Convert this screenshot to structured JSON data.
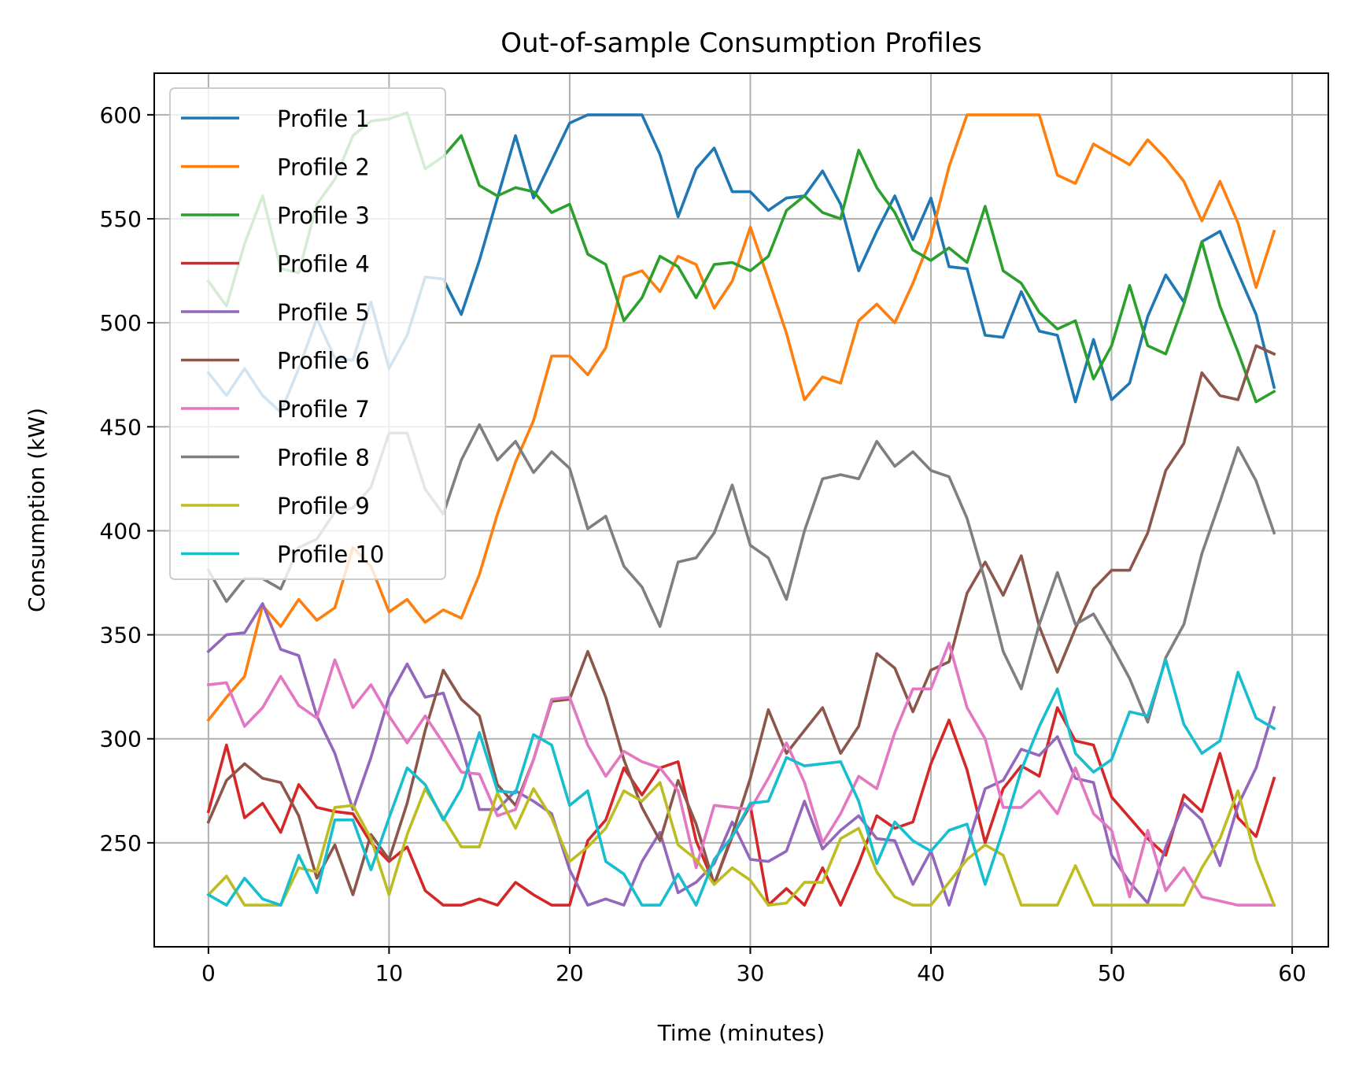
{
  "chart_data": {
    "type": "line",
    "title": "Out-of-sample Consumption Profiles",
    "xlabel": "Time (minutes)",
    "ylabel": "Consumption (kW)",
    "xlim": [
      -3,
      62
    ],
    "ylim": [
      200,
      620
    ],
    "xticks": [
      0,
      10,
      20,
      30,
      40,
      50,
      60
    ],
    "yticks": [
      250,
      300,
      350,
      400,
      450,
      500,
      550,
      600
    ],
    "grid": true,
    "legend_position": "upper-left",
    "x": [
      0,
      1,
      2,
      3,
      4,
      5,
      6,
      7,
      8,
      9,
      10,
      11,
      12,
      13,
      14,
      15,
      16,
      17,
      18,
      19,
      20,
      21,
      22,
      23,
      24,
      25,
      26,
      27,
      28,
      29,
      30,
      31,
      32,
      33,
      34,
      35,
      36,
      37,
      38,
      39,
      40,
      41,
      42,
      43,
      44,
      45,
      46,
      47,
      48,
      49,
      50,
      51,
      52,
      53,
      54,
      55,
      56,
      57,
      58,
      59
    ],
    "series": [
      {
        "name": "Profile 1",
        "color": "#1f77b4",
        "values": [
          476,
          465,
          478,
          465,
          457,
          478,
          502,
          483,
          482,
          510,
          478,
          494,
          522,
          521,
          504,
          530,
          560,
          590,
          560,
          578,
          596,
          600,
          600,
          600,
          600,
          581,
          551,
          574,
          584,
          563,
          563,
          554,
          560,
          561,
          573,
          557,
          525,
          544,
          561,
          540,
          560,
          527,
          526,
          494,
          493,
          515,
          496,
          494,
          462,
          492,
          463,
          471,
          503,
          523,
          510,
          539,
          544,
          524,
          504,
          469
        ]
      },
      {
        "name": "Profile 2",
        "color": "#ff7f0e",
        "values": [
          309,
          320,
          330,
          364,
          354,
          367,
          357,
          363,
          392,
          383,
          361,
          367,
          356,
          362,
          358,
          379,
          408,
          433,
          453,
          484,
          484,
          475,
          488,
          522,
          525,
          515,
          532,
          528,
          507,
          520,
          546,
          521,
          495,
          463,
          474,
          471,
          501,
          509,
          500,
          519,
          541,
          575,
          600,
          600,
          600,
          600,
          600,
          571,
          567,
          586,
          581,
          576,
          588,
          579,
          568,
          549,
          568,
          548,
          517,
          544
        ]
      },
      {
        "name": "Profile 3",
        "color": "#2ca02c",
        "values": [
          520,
          508,
          538,
          561,
          526,
          524,
          557,
          569,
          590,
          597,
          598,
          601,
          574,
          580,
          590,
          566,
          561,
          565,
          563,
          553,
          557,
          533,
          528,
          501,
          512,
          532,
          527,
          512,
          528,
          529,
          525,
          532,
          554,
          561,
          553,
          550,
          583,
          565,
          553,
          535,
          530,
          536,
          529,
          556,
          525,
          519,
          505,
          497,
          501,
          473,
          489,
          518,
          489,
          485,
          509,
          539,
          508,
          486,
          462,
          467
        ]
      },
      {
        "name": "Profile 4",
        "color": "#d62728",
        "values": [
          265,
          297,
          262,
          269,
          255,
          278,
          267,
          265,
          264,
          250,
          241,
          248,
          227,
          220,
          220,
          223,
          220,
          231,
          225,
          220,
          220,
          251,
          261,
          286,
          273,
          286,
          289,
          251,
          230,
          253,
          268,
          220,
          228,
          220,
          238,
          220,
          240,
          263,
          257,
          260,
          288,
          309,
          285,
          250,
          276,
          287,
          282,
          315,
          299,
          297,
          272,
          262,
          252,
          244,
          273,
          265,
          293,
          262,
          253,
          281
        ]
      },
      {
        "name": "Profile 5",
        "color": "#9467bd",
        "values": [
          342,
          350,
          351,
          365,
          343,
          340,
          311,
          293,
          266,
          291,
          320,
          336,
          320,
          322,
          297,
          266,
          266,
          275,
          270,
          264,
          237,
          220,
          223,
          220,
          241,
          255,
          226,
          231,
          240,
          260,
          242,
          241,
          246,
          270,
          247,
          256,
          263,
          252,
          251,
          230,
          246,
          220,
          248,
          276,
          280,
          295,
          292,
          301,
          281,
          279,
          244,
          231,
          221,
          248,
          269,
          261,
          239,
          268,
          286,
          315
        ]
      },
      {
        "name": "Profile 6",
        "color": "#8c564b",
        "values": [
          260,
          280,
          288,
          281,
          279,
          263,
          233,
          249,
          225,
          254,
          242,
          269,
          304,
          333,
          319,
          311,
          278,
          268,
          290,
          318,
          319,
          342,
          320,
          290,
          267,
          251,
          280,
          259,
          230,
          254,
          281,
          314,
          293,
          304,
          315,
          293,
          306,
          341,
          334,
          313,
          333,
          337,
          370,
          385,
          369,
          388,
          354,
          332,
          353,
          372,
          381,
          381,
          399,
          429,
          442,
          476,
          465,
          463,
          489,
          485
        ]
      },
      {
        "name": "Profile 7",
        "color": "#e377c2",
        "values": [
          326,
          327,
          306,
          315,
          330,
          316,
          310,
          338,
          315,
          326,
          311,
          298,
          311,
          298,
          284,
          283,
          263,
          266,
          290,
          319,
          320,
          297,
          282,
          294,
          289,
          286,
          275,
          238,
          268,
          267,
          266,
          281,
          298,
          279,
          250,
          264,
          282,
          276,
          303,
          324,
          324,
          346,
          315,
          300,
          267,
          267,
          275,
          264,
          286,
          264,
          256,
          224,
          256,
          227,
          238,
          224,
          222,
          220,
          220,
          220
        ]
      },
      {
        "name": "Profile 8",
        "color": "#7f7f7f",
        "values": [
          381,
          366,
          377,
          377,
          372,
          392,
          396,
          409,
          411,
          421,
          447,
          447,
          420,
          408,
          434,
          451,
          434,
          443,
          428,
          438,
          430,
          401,
          407,
          383,
          373,
          354,
          385,
          387,
          399,
          422,
          393,
          387,
          367,
          400,
          425,
          427,
          425,
          443,
          431,
          438,
          429,
          426,
          406,
          376,
          342,
          324,
          355,
          380,
          355,
          360,
          345,
          329,
          308,
          339,
          355,
          389,
          414,
          440,
          424,
          399
        ]
      },
      {
        "name": "Profile 9",
        "color": "#bcbd22",
        "values": [
          225,
          234,
          220,
          220,
          220,
          238,
          236,
          267,
          268,
          252,
          225,
          254,
          276,
          262,
          248,
          248,
          274,
          257,
          276,
          262,
          241,
          248,
          257,
          275,
          270,
          279,
          249,
          242,
          230,
          238,
          232,
          220,
          221,
          231,
          231,
          252,
          257,
          236,
          224,
          220,
          220,
          231,
          242,
          249,
          244,
          220,
          220,
          220,
          239,
          220,
          220,
          220,
          220,
          220,
          220,
          238,
          252,
          275,
          242,
          220
        ]
      },
      {
        "name": "Profile 10",
        "color": "#17becf",
        "values": [
          225,
          220,
          233,
          223,
          220,
          244,
          226,
          261,
          261,
          237,
          262,
          286,
          278,
          261,
          276,
          303,
          275,
          274,
          302,
          297,
          268,
          275,
          241,
          235,
          220,
          220,
          235,
          220,
          242,
          253,
          269,
          270,
          291,
          287,
          288,
          289,
          270,
          240,
          260,
          251,
          246,
          256,
          259,
          230,
          256,
          285,
          306,
          324,
          293,
          284,
          290,
          313,
          311,
          338,
          307,
          293,
          299,
          332,
          310,
          305
        ]
      }
    ]
  }
}
